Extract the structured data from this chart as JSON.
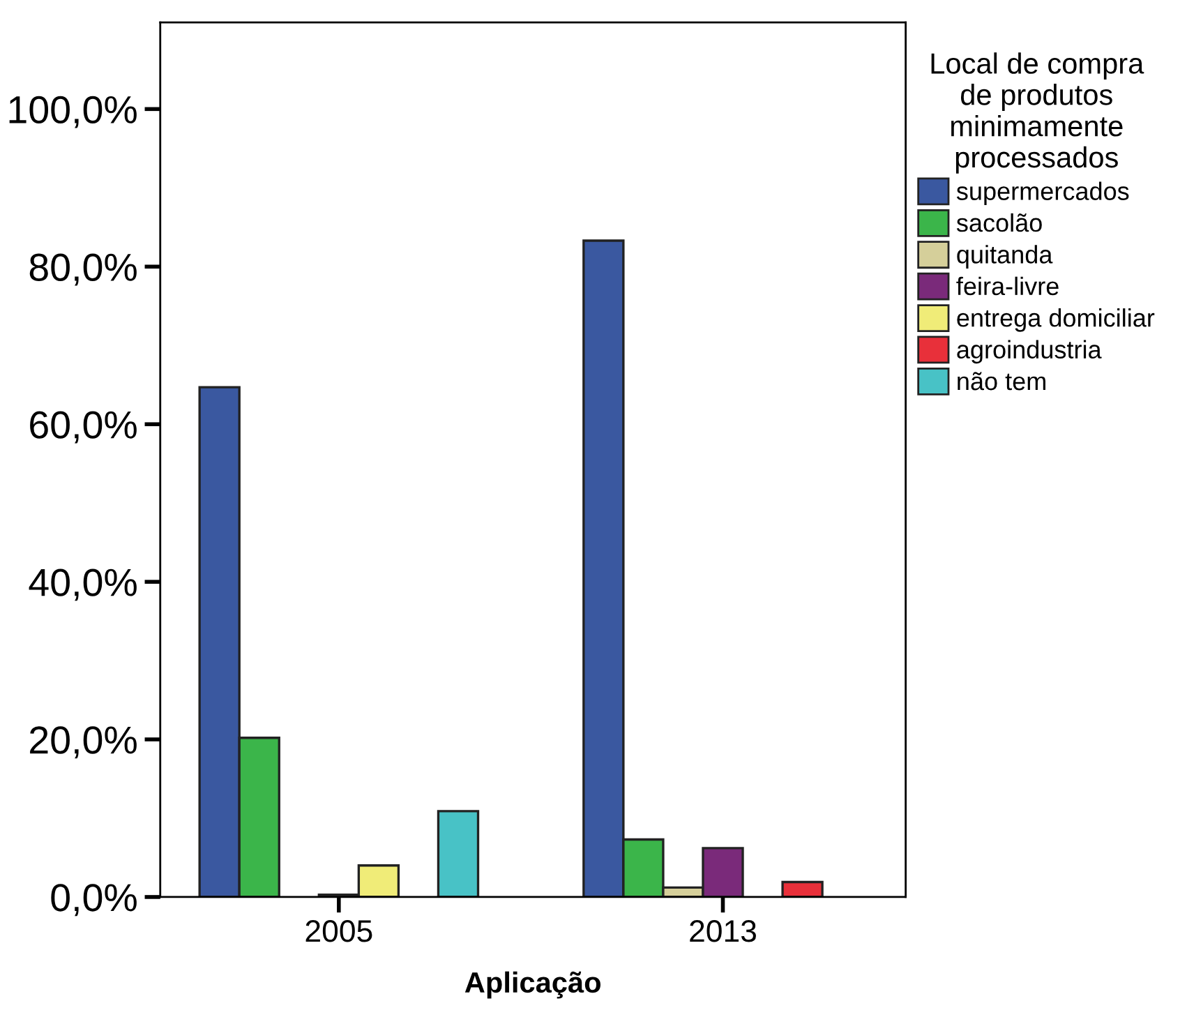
{
  "chart_data": {
    "type": "bar",
    "xlabel": "Aplicação",
    "categories": [
      "2005",
      "2013"
    ],
    "series": [
      {
        "name": "supermercados",
        "color": "#3a58a0",
        "values": [
          64.7,
          83.3
        ]
      },
      {
        "name": "sacolão",
        "color": "#3bb54a",
        "values": [
          20.2,
          7.3
        ]
      },
      {
        "name": "quitanda",
        "color": "#d5cf9a",
        "values": [
          null,
          1.2
        ]
      },
      {
        "name": "feira-livre",
        "color": "#7a2a7a",
        "values": [
          0.3,
          6.2
        ]
      },
      {
        "name": "entrega domiciliar",
        "color": "#f0ec78",
        "values": [
          4.0,
          null
        ]
      },
      {
        "name": "agroindustria",
        "color": "#e8303a",
        "values": [
          null,
          1.9
        ]
      },
      {
        "name": "não tem",
        "color": "#48c2c6",
        "values": [
          10.9,
          null
        ]
      }
    ],
    "ylim": [
      0,
      111
    ],
    "yticks": [
      {
        "value": 0,
        "label": "0,0%"
      },
      {
        "value": 20,
        "label": "20,0%"
      },
      {
        "value": 40,
        "label": "40,0%"
      },
      {
        "value": 60,
        "label": "60,0%"
      },
      {
        "value": 80,
        "label": "80,0%"
      },
      {
        "value": 100,
        "label": "100,0%"
      }
    ],
    "legend": "top right",
    "legend_title": "Local de compra\nde produtos\nminimamente\nprocessados",
    "grid": false
  }
}
